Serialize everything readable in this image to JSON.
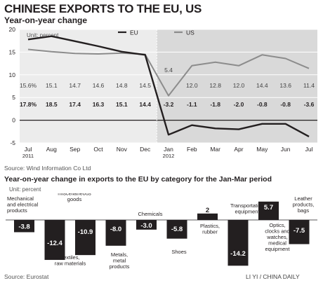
{
  "title": "CHINESE EXPORTS TO THE EU, US",
  "line_chart": {
    "subtitle": "Year-on-year change",
    "unit": "Unit: percent",
    "source": "Source: Wind Information Co Ltd",
    "series_colors": {
      "EU": "#231f20",
      "US": "#8c8c8c",
      "highlight_bg": "#d9d9d9"
    }
  },
  "bar_chart": {
    "subtitle": "Year-on-year change in exports to the EU by category for the Jan-Mar period",
    "unit": "Unit: percent",
    "source": "Source: Eurostat",
    "bar_color": "#231f20"
  },
  "credit": "LI YI / CHINA DAILY",
  "chart_data": [
    {
      "type": "line",
      "title": "Year-on-year change",
      "ylabel": "Unit: percent",
      "categories": [
        "Jul\n2011",
        "Aug",
        "Sep",
        "Oct",
        "Nov",
        "Dec",
        "Jan\n2012",
        "Feb",
        "Mar",
        "Apr",
        "May",
        "Jun",
        "Jul"
      ],
      "ylim": [
        -5,
        20
      ],
      "yticks": [
        -5,
        0,
        5,
        10,
        15,
        20
      ],
      "grid": true,
      "legend": "top-center",
      "highlight_from_index": 6,
      "series": [
        {
          "name": "EU",
          "values": [
            17.8,
            18.5,
            17.4,
            16.3,
            15.1,
            14.4,
            -3.2,
            -1.1,
            -1.8,
            -2.0,
            -0.8,
            -0.8,
            -3.6
          ],
          "labels": [
            "17.8%",
            "18.5",
            "17.4",
            "16.3",
            "15.1",
            "14.4",
            "-3.2",
            "-1.1",
            "-1.8",
            "-2.0",
            "-0.8",
            "-0.8",
            "-3.6"
          ]
        },
        {
          "name": "US",
          "values": [
            15.6,
            15.1,
            14.7,
            14.6,
            14.8,
            14.5,
            5.4,
            12.0,
            12.8,
            12.0,
            14.4,
            13.6,
            11.4
          ],
          "labels": [
            "15.6%",
            "15.1",
            "14.7",
            "14.6",
            "14.8",
            "14.5",
            "5.4",
            "12.0",
            "12.8",
            "12.0",
            "14.4",
            "13.6",
            "11.4"
          ]
        }
      ]
    },
    {
      "type": "bar",
      "title": "Year-on-year change in exports to the EU by category for the Jan-Mar period",
      "ylabel": "Unit: percent",
      "categories": [
        "Mechanical\nand electrical\nproducts",
        "Textiles,\nraw materials",
        "Furniture, toys,\nmiscellaneous\ngoods",
        "Metals,\nmetal\nproducts",
        "Chemicals",
        "Shoes",
        "Plastics,\nrubber",
        "Transportation\nequipment",
        "Optics,\nclocks and\nwatches,\nmedical\nequipment",
        "Leather\nproducts,\nbags"
      ],
      "values": [
        -3.8,
        -12.4,
        -10.9,
        -8.0,
        -3.0,
        -5.8,
        2,
        -14.2,
        5.7,
        -7.5
      ],
      "value_labels": [
        "-3.8",
        "-12.4",
        "-10.9",
        "-8.0",
        "-3.0",
        "-5.8",
        "2",
        "-14.2",
        "5.7",
        "-7.5"
      ]
    }
  ]
}
